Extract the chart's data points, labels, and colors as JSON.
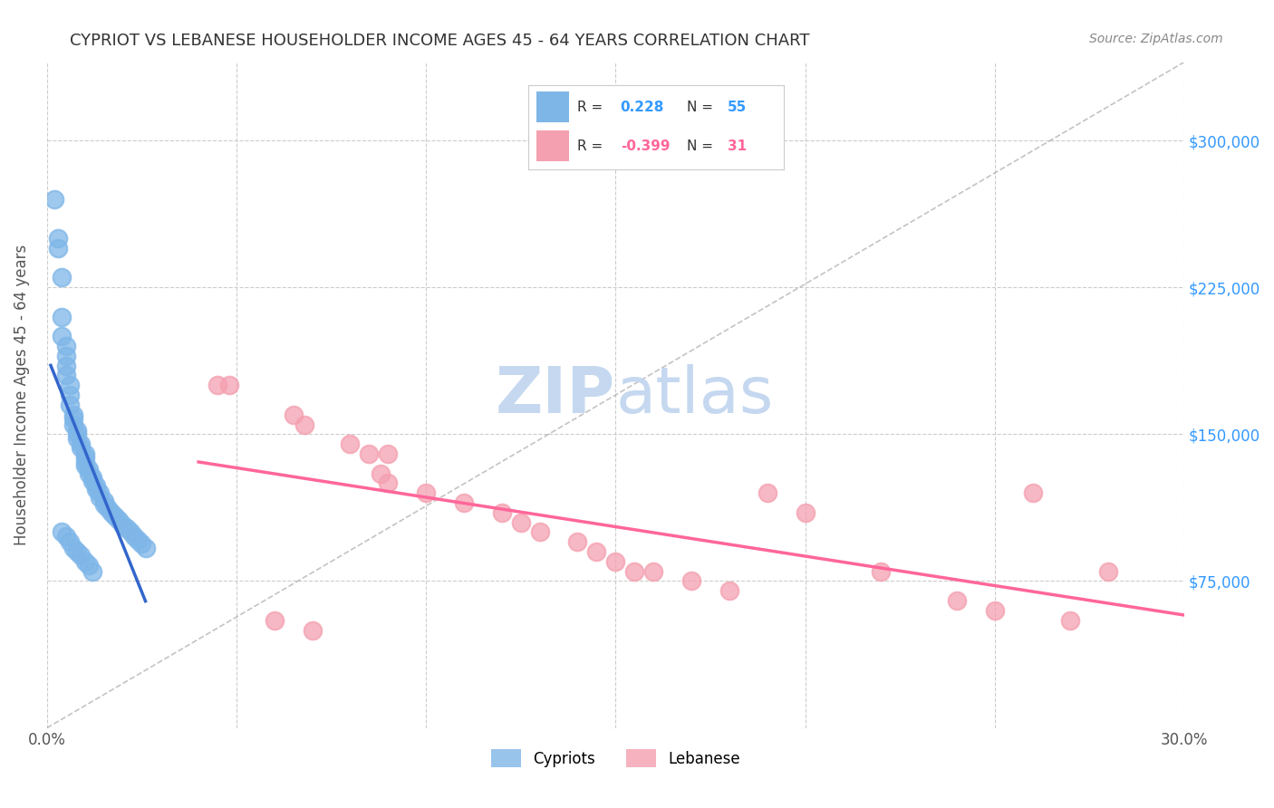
{
  "title": "CYPRIOT VS LEBANESE HOUSEHOLDER INCOME AGES 45 - 64 YEARS CORRELATION CHART",
  "source": "Source: ZipAtlas.com",
  "ylabel": "Householder Income Ages 45 - 64 years",
  "xmin": 0.0,
  "xmax": 0.3,
  "ymin": 0,
  "ymax": 340000,
  "cypriot_color": "#7EB6E8",
  "lebanese_color": "#F4A0B0",
  "cypriot_line_color": "#3366CC",
  "lebanese_line_color": "#FF6699",
  "cypriot_R": 0.228,
  "cypriot_N": 55,
  "lebanese_R": -0.399,
  "lebanese_N": 31,
  "watermark_zip_color": "#C5D8F0",
  "watermark_atlas_color": "#C5D8F0",
  "background_color": "#FFFFFF",
  "grid_color": "#CCCCCC",
  "cypriot_x": [
    0.002,
    0.003,
    0.003,
    0.004,
    0.004,
    0.004,
    0.005,
    0.005,
    0.005,
    0.005,
    0.006,
    0.006,
    0.006,
    0.007,
    0.007,
    0.007,
    0.008,
    0.008,
    0.008,
    0.009,
    0.009,
    0.01,
    0.01,
    0.01,
    0.01,
    0.011,
    0.011,
    0.012,
    0.012,
    0.013,
    0.013,
    0.014,
    0.014,
    0.015,
    0.015,
    0.016,
    0.017,
    0.018,
    0.019,
    0.02,
    0.021,
    0.022,
    0.023,
    0.024,
    0.025,
    0.026,
    0.004,
    0.005,
    0.006,
    0.007,
    0.008,
    0.009,
    0.01,
    0.011,
    0.012
  ],
  "cypriot_y": [
    270000,
    250000,
    245000,
    230000,
    210000,
    200000,
    195000,
    190000,
    185000,
    180000,
    175000,
    170000,
    165000,
    160000,
    158000,
    155000,
    152000,
    150000,
    148000,
    145000,
    143000,
    140000,
    138000,
    136000,
    134000,
    132000,
    130000,
    128000,
    126000,
    124000,
    122000,
    120000,
    118000,
    116000,
    114000,
    112000,
    110000,
    108000,
    106000,
    104000,
    102000,
    100000,
    98000,
    96000,
    94000,
    92000,
    100000,
    98000,
    95000,
    92000,
    90000,
    88000,
    85000,
    83000,
    80000
  ],
  "lebanese_x": [
    0.045,
    0.048,
    0.065,
    0.068,
    0.08,
    0.085,
    0.088,
    0.09,
    0.1,
    0.11,
    0.12,
    0.125,
    0.13,
    0.14,
    0.145,
    0.15,
    0.155,
    0.16,
    0.17,
    0.18,
    0.19,
    0.2,
    0.22,
    0.24,
    0.25,
    0.26,
    0.27,
    0.28,
    0.06,
    0.07,
    0.09
  ],
  "lebanese_y": [
    175000,
    175000,
    160000,
    155000,
    145000,
    140000,
    130000,
    125000,
    120000,
    115000,
    110000,
    105000,
    100000,
    95000,
    90000,
    85000,
    80000,
    80000,
    75000,
    70000,
    120000,
    110000,
    80000,
    65000,
    60000,
    120000,
    55000,
    80000,
    55000,
    50000,
    140000
  ]
}
